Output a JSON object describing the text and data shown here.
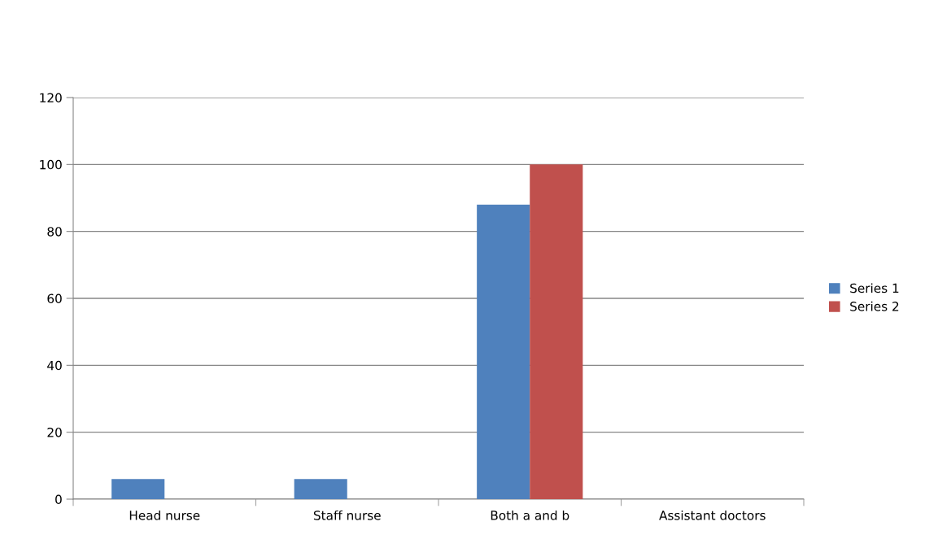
{
  "chart_data": {
    "type": "bar",
    "categories": [
      "Head nurse",
      "Staff nurse",
      "Both a and b",
      "Assistant doctors"
    ],
    "series": [
      {
        "name": "Series 1",
        "color": "#4f81bd",
        "values": [
          6,
          6,
          88,
          0
        ]
      },
      {
        "name": "Series 2",
        "color": "#c0504d",
        "values": [
          0,
          0,
          100,
          0
        ]
      }
    ],
    "ylim": [
      0,
      120
    ],
    "yticks": [
      0,
      20,
      40,
      60,
      80,
      100,
      120
    ],
    "grid": "y",
    "legend": "right"
  }
}
